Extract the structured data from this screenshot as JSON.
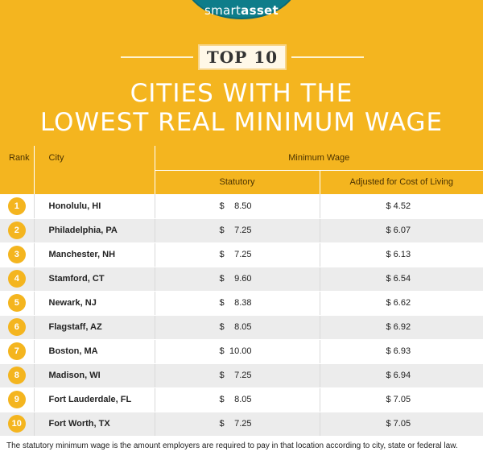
{
  "brand": {
    "smart": "smart",
    "asset": "asset"
  },
  "banner": "TOP 10",
  "title_line1": "CITIES WITH THE",
  "title_line2": "LOWEST REAL MINIMUM WAGE",
  "headers": {
    "rank": "Rank",
    "city": "City",
    "minimum_wage": "Minimum Wage",
    "statutory": "Statutory",
    "adjusted": "Adjusted for Cost of Living"
  },
  "currency": "$",
  "rows": [
    {
      "rank": "1",
      "city": "Honolulu, HI",
      "statutory": "8.50",
      "adjusted": "$ 4.52"
    },
    {
      "rank": "2",
      "city": "Philadelphia, PA",
      "statutory": "7.25",
      "adjusted": "$ 6.07"
    },
    {
      "rank": "3",
      "city": "Manchester, NH",
      "statutory": "7.25",
      "adjusted": "$ 6.13"
    },
    {
      "rank": "4",
      "city": "Stamford, CT",
      "statutory": "9.60",
      "adjusted": "$ 6.54"
    },
    {
      "rank": "5",
      "city": "Newark, NJ",
      "statutory": "8.38",
      "adjusted": "$ 6.62"
    },
    {
      "rank": "6",
      "city": "Flagstaff, AZ",
      "statutory": "8.05",
      "adjusted": "$ 6.92"
    },
    {
      "rank": "7",
      "city": "Boston, MA",
      "statutory": "10.00",
      "adjusted": "$ 6.93"
    },
    {
      "rank": "8",
      "city": "Madison, WI",
      "statutory": "7.25",
      "adjusted": "$ 6.94"
    },
    {
      "rank": "9",
      "city": "Fort Lauderdale, FL",
      "statutory": "8.05",
      "adjusted": "$ 7.05"
    },
    {
      "rank": "10",
      "city": "Fort Worth, TX",
      "statutory": "7.25",
      "adjusted": "$ 7.05"
    }
  ],
  "footnote": "The statutory minimum wage is the amount employers are required to pay in that location according to city, state or federal law.",
  "colors": {
    "accent": "#f4b51f",
    "logo": "#0e7d8a",
    "row_alt": "#ececec"
  }
}
